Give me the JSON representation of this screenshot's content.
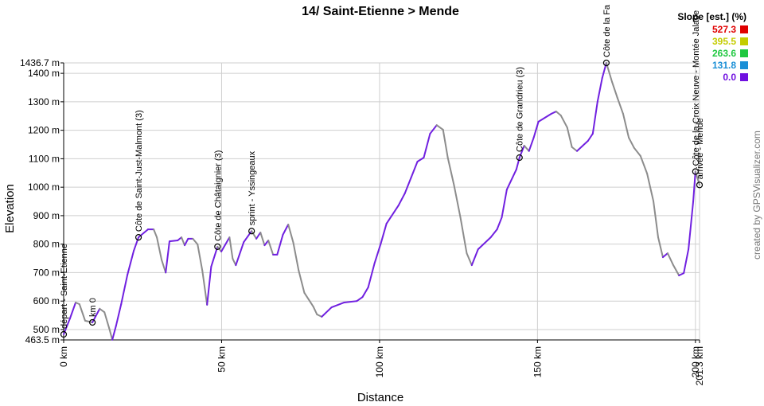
{
  "chart_data": {
    "type": "line",
    "title": "14/ Saint-Etienne > Mende",
    "x_label": "Distance",
    "y_label": "Elevation",
    "credit": "created by GPSVisualizer.com",
    "grid": true,
    "xlim": [
      0,
      201.3
    ],
    "ylim": [
      463.5,
      1436.7
    ],
    "xticks": [
      {
        "value": 0,
        "label": "0 km"
      },
      {
        "value": 50,
        "label": "50 km"
      },
      {
        "value": 100,
        "label": "100 km"
      },
      {
        "value": 150,
        "label": "150 km"
      },
      {
        "value": 200,
        "label": "200 km"
      },
      {
        "value": 201.3,
        "label": "201.3 km"
      }
    ],
    "yticks": [
      {
        "value": 463.5,
        "label": "463.5 m"
      },
      {
        "value": 500,
        "label": "500 m"
      },
      {
        "value": 600,
        "label": "600 m"
      },
      {
        "value": 700,
        "label": "700 m"
      },
      {
        "value": 800,
        "label": "800 m"
      },
      {
        "value": 900,
        "label": "900 m"
      },
      {
        "value": 1000,
        "label": "1000 m"
      },
      {
        "value": 1100,
        "label": "1100 m"
      },
      {
        "value": 1200,
        "label": "1200 m"
      },
      {
        "value": 1300,
        "label": "1300 m"
      },
      {
        "value": 1400,
        "label": "1400 m"
      },
      {
        "value": 1436.7,
        "label": "1436.7 m"
      }
    ],
    "rise_color": "#7020e0",
    "fall_color": "#8c8c8c",
    "x": [
      0,
      2.0,
      3.8,
      5.0,
      6.8,
      9.1,
      11.4,
      12.9,
      14.4,
      15.4,
      16.6,
      18.2,
      20.2,
      22.2,
      23.7,
      26.7,
      28.5,
      29.5,
      31.0,
      32.3,
      33.5,
      36.1,
      37.3,
      38.3,
      39.4,
      40.9,
      42.4,
      43.9,
      45.4,
      46.7,
      48.7,
      49.9,
      52.5,
      53.5,
      54.5,
      57.0,
      59.5,
      61.0,
      62.3,
      63.6,
      64.8,
      66.3,
      67.6,
      69.4,
      71.1,
      72.7,
      74.4,
      76.2,
      79.0,
      80.2,
      81.7,
      84.8,
      88.8,
      92.8,
      94.6,
      96.4,
      98.4,
      100.4,
      102.2,
      106.0,
      108.0,
      110.0,
      112.0,
      114.0,
      116.0,
      118.1,
      120.1,
      121.6,
      123.6,
      125.6,
      127.6,
      129.2,
      131.2,
      135.2,
      137.2,
      138.7,
      140.3,
      143.3,
      144.3,
      145.8,
      147.3,
      148.8,
      150.3,
      154.4,
      155.9,
      157.4,
      159.4,
      160.9,
      162.5,
      166.0,
      167.5,
      169.0,
      170.5,
      171.8,
      173.6,
      175.3,
      177.1,
      178.9,
      180.6,
      182.6,
      184.7,
      186.7,
      188.2,
      189.7,
      191.2,
      193.0,
      194.8,
      196.3,
      197.8,
      199.3,
      200.0,
      201.3
    ],
    "values": [
      483,
      539,
      595,
      589,
      531,
      525,
      573,
      561,
      505,
      464,
      514,
      589,
      693,
      777,
      824,
      852,
      852,
      824,
      745,
      700,
      810,
      813,
      824,
      796,
      819,
      819,
      799,
      707,
      587,
      721,
      791,
      774,
      824,
      749,
      726,
      807,
      846,
      819,
      841,
      796,
      813,
      763,
      763,
      833,
      869,
      805,
      707,
      629,
      581,
      553,
      545,
      578,
      595,
      600,
      614,
      648,
      732,
      802,
      872,
      936,
      978,
      1034,
      1090,
      1104,
      1188,
      1218,
      1202,
      1104,
      1006,
      894,
      768,
      726,
      782,
      824,
      852,
      894,
      992,
      1062,
      1104,
      1146,
      1127,
      1174,
      1230,
      1258,
      1266,
      1252,
      1210,
      1141,
      1127,
      1163,
      1188,
      1300,
      1384,
      1436.7,
      1370,
      1314,
      1258,
      1174,
      1138,
      1110,
      1048,
      951,
      824,
      754,
      768,
      726,
      690,
      698,
      782,
      950,
      1055,
      1008
    ],
    "waypoints": [
      {
        "label": "départ - Saint-Etienne",
        "x": 0,
        "y": 483
      },
      {
        "label": "km 0",
        "x": 9.1,
        "y": 525
      },
      {
        "label": "Côte de Saint-Just-Malmont (3)",
        "x": 23.7,
        "y": 824
      },
      {
        "label": "Côte de Châtaignier (3)",
        "x": 48.7,
        "y": 791
      },
      {
        "label": "sprint - Yssingeaux",
        "x": 59.5,
        "y": 846
      },
      {
        "label": "Côte de Grandrieu (3)",
        "x": 144.3,
        "y": 1104
      },
      {
        "label": "Côte de la Fa",
        "x": 171.8,
        "y": 1436.7
      },
      {
        "label": "Côte de la Croix Neuve - Montée Jalabe",
        "x": 200.0,
        "y": 1055
      },
      {
        "label": "arrivée - Mende",
        "x": 201.3,
        "y": 1008
      }
    ],
    "legend": {
      "title": "Slope [est.] (%)",
      "items": [
        {
          "value": 527.3,
          "label": "527.3",
          "color": "#e00000"
        },
        {
          "value": 395.5,
          "label": "395.5",
          "color": "#c4cc00"
        },
        {
          "value": 263.6,
          "label": "263.6",
          "color": "#20c840"
        },
        {
          "value": 131.8,
          "label": "131.8",
          "color": "#1a8fd6"
        },
        {
          "value": 0,
          "label": "0.0",
          "color": "#7010e0"
        }
      ]
    }
  }
}
